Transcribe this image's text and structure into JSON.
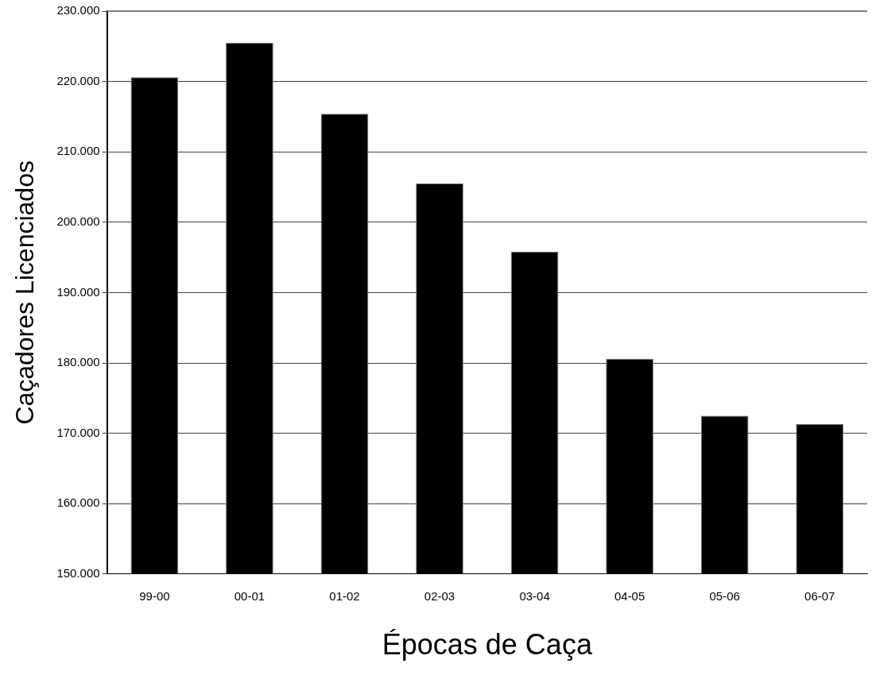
{
  "chart_data": {
    "type": "bar",
    "xlabel": "Épocas de Caça",
    "ylabel": "Caçadores Licenciados",
    "categories": [
      "99-00",
      "00-01",
      "01-02",
      "02-03",
      "03-04",
      "04-05",
      "05-06",
      "06-07"
    ],
    "values": [
      220600,
      225500,
      215400,
      205500,
      195800,
      180600,
      172500,
      171300
    ],
    "color": "#000000",
    "ylim": [
      150000,
      230000
    ],
    "yticks": [
      {
        "value": 150000,
        "label": "150.000"
      },
      {
        "value": 160000,
        "label": "160.000"
      },
      {
        "value": 170000,
        "label": "170.000"
      },
      {
        "value": 180000,
        "label": "180.000"
      },
      {
        "value": 190000,
        "label": "190.000"
      },
      {
        "value": 200000,
        "label": "200.000"
      },
      {
        "value": 210000,
        "label": "210.000"
      },
      {
        "value": 220000,
        "label": "220.000"
      },
      {
        "value": 230000,
        "label": "230.000"
      }
    ],
    "grid": "y",
    "legend": false
  }
}
